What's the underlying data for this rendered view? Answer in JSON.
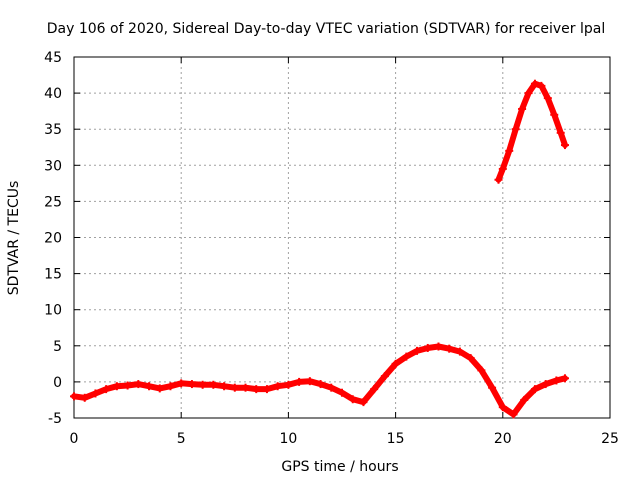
{
  "chart_data": {
    "type": "scatter",
    "title": "Day 106 of 2020, Sidereal Day-to-day VTEC variation (SDTVAR) for receiver lpal",
    "xlabel": "GPS time / hours",
    "ylabel": "SDTVAR / TECUs",
    "xlim": [
      0,
      25
    ],
    "ylim": [
      -5,
      45
    ],
    "xticks": [
      0,
      5,
      10,
      15,
      20,
      25
    ],
    "yticks": [
      -5,
      0,
      5,
      10,
      15,
      20,
      25,
      30,
      35,
      40,
      45
    ],
    "grid": true,
    "legend": "none",
    "series": [
      {
        "name": "SDTVAR",
        "color": "#ff0000",
        "x": [
          0.0,
          0.5,
          1.0,
          1.5,
          2.0,
          2.5,
          3.0,
          3.5,
          4.0,
          4.5,
          5.0,
          5.5,
          6.0,
          6.5,
          7.0,
          7.5,
          8.0,
          8.5,
          9.0,
          9.5,
          10.0,
          10.5,
          11.0,
          11.5,
          12.0,
          12.5,
          13.0,
          13.5,
          14.0,
          14.5,
          15.0,
          15.5,
          16.0,
          16.5,
          17.0,
          17.5,
          18.0,
          18.5,
          19.0,
          19.5,
          20.0,
          20.5,
          21.0,
          21.5,
          22.0,
          22.5,
          22.9
        ],
        "y": [
          -2.0,
          -2.2,
          -1.6,
          -1.0,
          -0.6,
          -0.5,
          -0.3,
          -0.6,
          -0.9,
          -0.6,
          -0.2,
          -0.3,
          -0.4,
          -0.4,
          -0.6,
          -0.8,
          -0.8,
          -1.0,
          -1.0,
          -0.6,
          -0.4,
          0.0,
          0.1,
          -0.3,
          -0.8,
          -1.5,
          -2.4,
          -2.8,
          -1.0,
          0.8,
          2.5,
          3.5,
          4.3,
          4.7,
          4.9,
          4.6,
          4.2,
          3.3,
          1.6,
          -0.8,
          -3.5,
          -4.5,
          -2.5,
          -1.0,
          -0.3,
          0.2,
          0.5
        ]
      },
      {
        "name": "SDTVAR-upper",
        "color": "#ff0000",
        "x": [
          19.8,
          20.0,
          20.3,
          20.6,
          20.9,
          21.2,
          21.5,
          21.8,
          22.1,
          22.4,
          22.7,
          22.9
        ],
        "y": [
          28.0,
          29.5,
          32.0,
          35.0,
          37.8,
          40.0,
          41.3,
          41.0,
          39.3,
          37.0,
          34.5,
          32.8
        ]
      }
    ]
  }
}
